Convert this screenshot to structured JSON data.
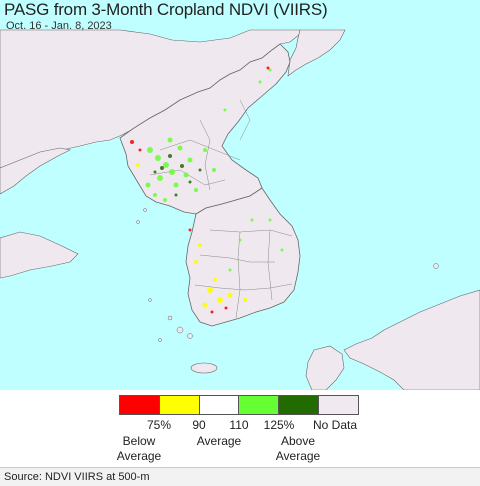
{
  "title": "PASG from 3-Month Cropland NDVI (VIIRS)",
  "subtitle": "Oct. 16 - Jan. 8, 2023",
  "legend": {
    "colors": [
      "#ff0000",
      "#ffff00",
      "#ffffff",
      "#66ff33",
      "#226b00",
      "#f0eaf0"
    ],
    "ticks": [
      "75%",
      "90",
      "110",
      "125%",
      "No Data"
    ],
    "categories": [
      {
        "line1": "Below",
        "line2": "Average"
      },
      {
        "line1": "Average",
        "line2": ""
      },
      {
        "line1": "Above",
        "line2": "Average"
      }
    ]
  },
  "map_colors": {
    "water": "#bfffff",
    "land": "#efe9ef",
    "border": "#777777"
  },
  "source": "Source: NDVI VIIRS at 500-m"
}
